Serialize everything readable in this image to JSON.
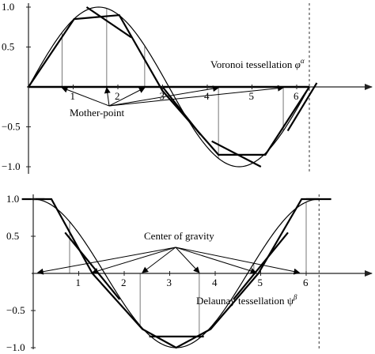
{
  "chart_data": [
    {
      "type": "line",
      "caption": "Voronoi tessellation",
      "caption_symbol": "φ",
      "caption_sup": "α",
      "annotation": "Mother-point",
      "x_tick_labels": [
        "1",
        "2",
        "3",
        "4",
        "5",
        "6"
      ],
      "y_tick_labels": [
        "1.0",
        "0.5",
        "−0.5",
        "−1.0"
      ],
      "x_ticks": [
        1,
        2,
        3,
        4,
        5,
        6
      ],
      "y_ticks": [
        1.0,
        0.5,
        -0.5,
        -1.0
      ],
      "xlim": [
        0,
        6.85
      ],
      "ylim": [
        -1.08,
        1.08
      ],
      "curve": {
        "function": "sin",
        "x_range": [
          0,
          6.2832
        ]
      },
      "polyline": {
        "x": [
          0,
          1.02,
          2.03,
          3.0,
          4.25,
          5.3,
          6.2832
        ],
        "y": [
          0,
          0.85,
          0.9,
          -0.05,
          -0.85,
          -0.85,
          0
        ]
      },
      "extension_segments": [
        {
          "x": [
            1.3,
            2.3
          ],
          "y": [
            1.0,
            0.62
          ]
        },
        {
          "x": [
            3.0,
            3.85
          ],
          "y": [
            0.0,
            -0.6
          ]
        },
        {
          "x": [
            4.1,
            5.2
          ],
          "y": [
            -0.68,
            -1.0
          ]
        },
        {
          "x": [
            5.8,
            6.45
          ],
          "y": [
            -0.55,
            0.05
          ]
        }
      ],
      "dropline_x": [
        0.75,
        1.75,
        2.6,
        4.25,
        5.7
      ],
      "mother_points_x": [
        0.75,
        1.75,
        2.6,
        4.25,
        5.7
      ],
      "period_marker_x": 6.2832,
      "dashed_line_x": 6.2832
    },
    {
      "type": "line",
      "caption": "Delaunay tessellation",
      "caption_symbol": "ψ",
      "caption_sup": "β",
      "annotation": "Center of gravity",
      "x_tick_labels": [
        "1",
        "2",
        "3",
        "4",
        "5",
        "6"
      ],
      "y_tick_labels": [
        "1.0",
        "0.5",
        "−0.5",
        "−1.0"
      ],
      "x_ticks": [
        1,
        2,
        3,
        4,
        5,
        6
      ],
      "y_ticks": [
        1.0,
        0.5,
        -0.5,
        -1.0
      ],
      "xlim": [
        -0.2,
        6.85
      ],
      "ylim": [
        -1.08,
        1.08
      ],
      "curve": {
        "function": "cos",
        "x_range": [
          0,
          6.2832
        ]
      },
      "polyline": {
        "x": [
          0,
          0.4,
          1.3,
          2.4,
          3.1416,
          3.9,
          4.95,
          5.9,
          6.2832
        ],
        "y": [
          1.0,
          1.0,
          0.0,
          -0.75,
          -1.0,
          -0.75,
          0.0,
          1.0,
          1.0
        ]
      },
      "extension_segments": [
        {
          "x": [
            -0.25,
            0.25
          ],
          "y": [
            1.0,
            1.0
          ]
        },
        {
          "x": [
            0.7,
            1.9
          ],
          "y": [
            0.55,
            -0.35
          ]
        },
        {
          "x": [
            2.55,
            3.75
          ],
          "y": [
            -0.85,
            -0.85
          ]
        },
        {
          "x": [
            4.4,
            5.6
          ],
          "y": [
            -0.35,
            0.55
          ]
        },
        {
          "x": [
            6.0,
            6.55
          ],
          "y": [
            1.0,
            1.0
          ]
        }
      ],
      "dropline_x": [
        0,
        0.8,
        2.35,
        3.65,
        4.85,
        6.0
      ],
      "centers_x": [
        0.1,
        1.3,
        2.4,
        3.65,
        4.9,
        5.85
      ],
      "dashed_line_x": 6.2832
    }
  ]
}
